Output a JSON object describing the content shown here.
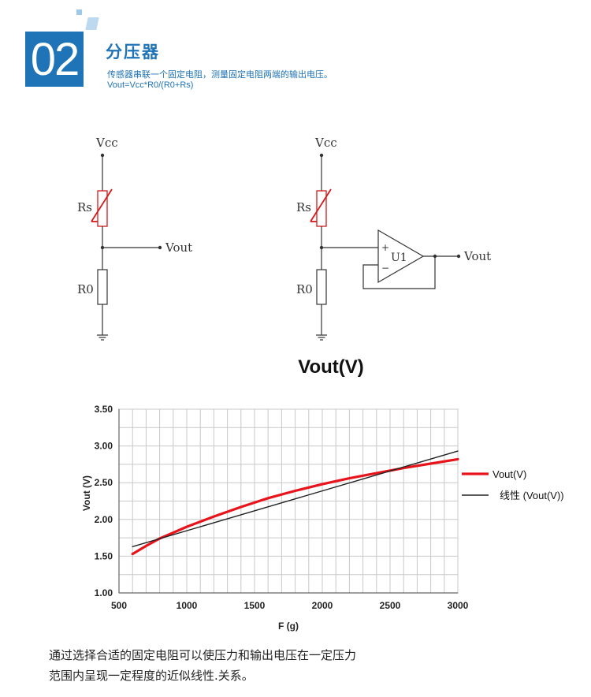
{
  "header": {
    "number": "02",
    "title": "分压器",
    "subtitle": "传感器串联一个固定电阻，测量固定电阻两端的输出电压。",
    "formula": "Vout=Vcc*R0/(R0+Rs)"
  },
  "circuit_left": {
    "vcc": "Vcc",
    "rs": "Rs",
    "r0": "R0",
    "vout": "Vout"
  },
  "circuit_right": {
    "vcc": "Vcc",
    "rs": "Rs",
    "r0": "R0",
    "opamp": "U1",
    "plus": "+",
    "minus": "−",
    "vout": "Vout"
  },
  "colors": {
    "accent": "#1f73b7",
    "measured": "#e8141c",
    "linear": "#222222",
    "resistor_slash": "#d11b1b"
  },
  "chart_data": {
    "type": "line",
    "title": "Vout(V)",
    "xlabel": "F (g)",
    "ylabel": "Vout (V)",
    "xlim": [
      500,
      3000
    ],
    "ylim": [
      1.0,
      3.5
    ],
    "xticks": [
      500,
      1000,
      1500,
      2000,
      2500,
      3000
    ],
    "yticks": [
      1.0,
      1.5,
      2.0,
      2.5,
      3.0,
      3.5
    ],
    "xtick_labels": [
      "500",
      "1000",
      "1500",
      "2000",
      "2500",
      "3000"
    ],
    "ytick_labels": [
      "1.00",
      "1.50",
      "2.00",
      "2.50",
      "3.00",
      "3.50"
    ],
    "grid": true,
    "legend_position": "right",
    "series": [
      {
        "name": "Vout(V)",
        "x": [
          600,
          700,
          800,
          900,
          1000,
          1200,
          1400,
          1600,
          1800,
          2000,
          2200,
          2400,
          2600,
          2800,
          3000
        ],
        "y": [
          1.53,
          1.64,
          1.74,
          1.82,
          1.9,
          2.04,
          2.17,
          2.29,
          2.39,
          2.48,
          2.56,
          2.63,
          2.7,
          2.76,
          2.82
        ]
      },
      {
        "name": "线性 (Vout(V))",
        "x": [
          600,
          3000
        ],
        "y": [
          1.63,
          2.93
        ]
      }
    ]
  },
  "footer": {
    "line1": "通过选择合适的固定电阻可以使压力和输出电压在一定压力",
    "line2": "范围内呈现一定程度的近似线性.关系。"
  }
}
